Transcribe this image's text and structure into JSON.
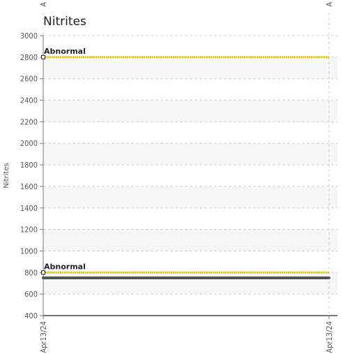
{
  "chart_data": {
    "type": "line",
    "title": "Nitrites",
    "ylabel": "Nitrites",
    "xlabel": "",
    "ylim": [
      400,
      3000
    ],
    "yticks": [
      400,
      600,
      800,
      1000,
      1200,
      1400,
      1600,
      1800,
      2000,
      2200,
      2400,
      2600,
      2800,
      3000
    ],
    "xticks": [
      "Apr13/24",
      "Apr13/24"
    ],
    "grid": true,
    "thresholds": [
      {
        "label": "Abnormal",
        "value": 2800,
        "color": "#e8c100"
      },
      {
        "label": "Abnormal",
        "value": 800,
        "color": "#e8c100"
      }
    ],
    "series": [
      {
        "values": [
          750,
          750
        ],
        "color": "#555555"
      }
    ],
    "top_labels": [
      "A",
      "A"
    ]
  }
}
